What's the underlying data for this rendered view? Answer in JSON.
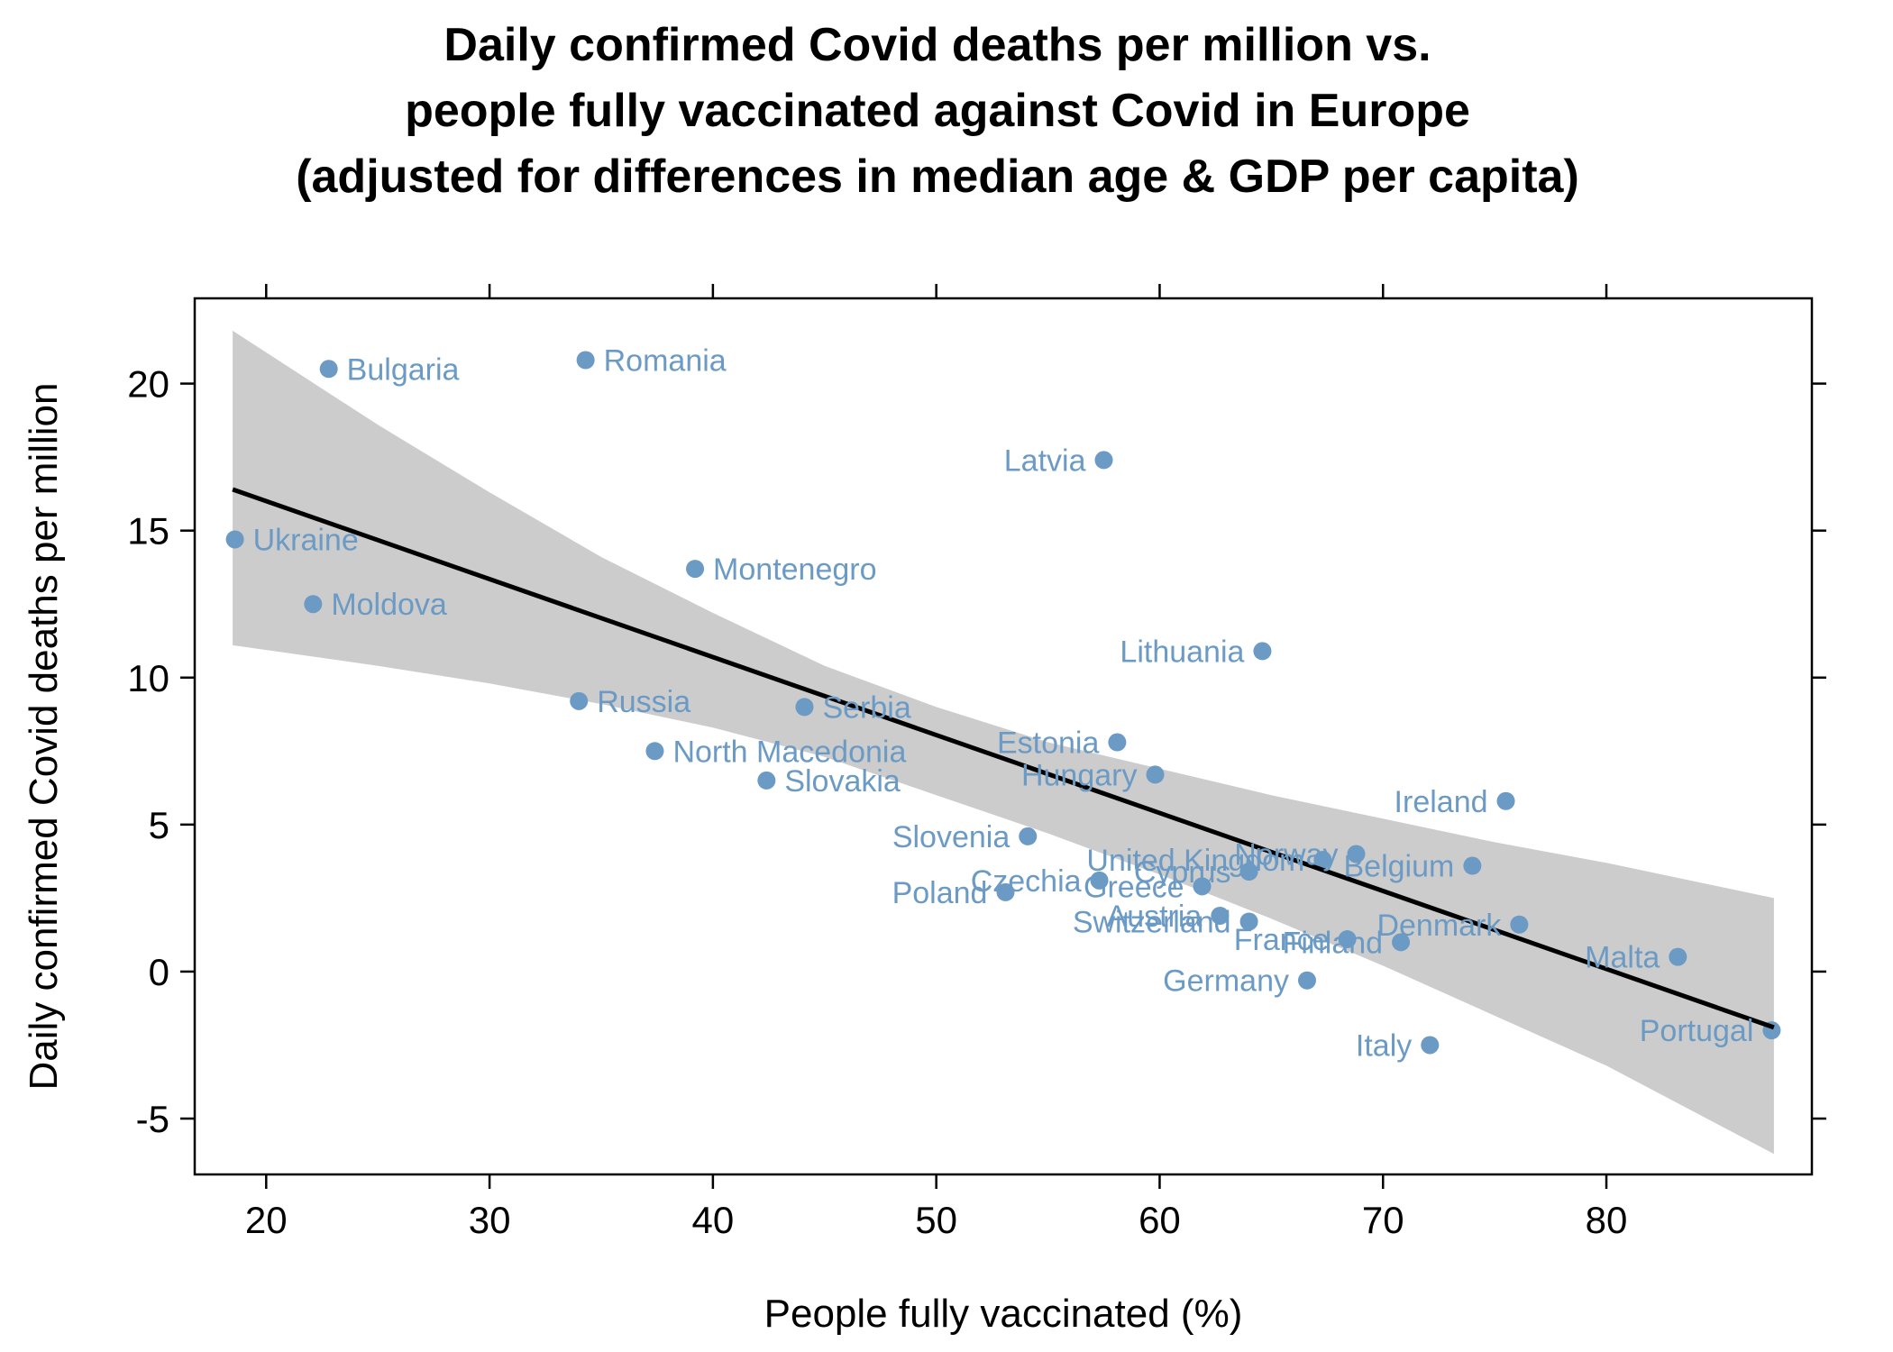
{
  "chart_data": {
    "type": "scatter",
    "title_lines": [
      "Daily confirmed Covid deaths per million vs.",
      "people fully vaccinated against Covid in Europe",
      "(adjusted for differences in median age & GDP per capita)"
    ],
    "xlabel": "People fully vaccinated (%)",
    "ylabel": "Daily confirmed Covid deaths per million",
    "xlim": [
      16.8,
      89.2
    ],
    "ylim": [
      -6.9,
      22.9
    ],
    "xticks": [
      "20",
      "30",
      "40",
      "50",
      "60",
      "70",
      "80"
    ],
    "yticks": [
      "-5",
      "0",
      "5",
      "10",
      "15",
      "20"
    ],
    "grid": false,
    "point_color": "#6b9ac4",
    "band_color": "#cccccc",
    "line_color": "#000000",
    "fit_line": {
      "x": [
        18.5,
        87.5
      ],
      "y": [
        16.4,
        -1.9
      ]
    },
    "confidence_band": {
      "x": [
        18.5,
        25,
        30,
        35,
        40,
        45,
        50,
        55,
        60,
        65,
        70,
        75,
        80,
        87.5
      ],
      "upper": [
        21.8,
        18.6,
        16.3,
        14.1,
        12.2,
        10.4,
        9.0,
        7.8,
        6.9,
        6.0,
        5.2,
        4.4,
        3.7,
        2.5
      ],
      "lower": [
        11.1,
        10.4,
        9.8,
        9.1,
        8.3,
        7.3,
        6.0,
        4.7,
        3.3,
        1.8,
        0.2,
        -1.5,
        -3.2,
        -6.2
      ]
    },
    "points": [
      {
        "name": "Bulgaria",
        "x": 22.8,
        "y": 20.5,
        "side": "right"
      },
      {
        "name": "Romania",
        "x": 34.3,
        "y": 20.8,
        "side": "right"
      },
      {
        "name": "Latvia",
        "x": 57.5,
        "y": 17.4,
        "side": "left"
      },
      {
        "name": "Ukraine",
        "x": 18.6,
        "y": 14.7,
        "side": "right"
      },
      {
        "name": "Montenegro",
        "x": 39.2,
        "y": 13.7,
        "side": "right"
      },
      {
        "name": "Moldova",
        "x": 22.1,
        "y": 12.5,
        "side": "right"
      },
      {
        "name": "Lithuania",
        "x": 64.6,
        "y": 10.9,
        "side": "left"
      },
      {
        "name": "Russia",
        "x": 34.0,
        "y": 9.2,
        "side": "right"
      },
      {
        "name": "Serbia",
        "x": 44.1,
        "y": 9.0,
        "side": "right"
      },
      {
        "name": "North Macedonia",
        "x": 37.4,
        "y": 7.5,
        "side": "right"
      },
      {
        "name": "Estonia",
        "x": 58.1,
        "y": 7.8,
        "side": "left"
      },
      {
        "name": "Hungary",
        "x": 59.8,
        "y": 6.7,
        "side": "left"
      },
      {
        "name": "Slovakia",
        "x": 42.4,
        "y": 6.5,
        "side": "right"
      },
      {
        "name": "Ireland",
        "x": 75.5,
        "y": 5.8,
        "side": "left"
      },
      {
        "name": "Slovenia",
        "x": 54.1,
        "y": 4.6,
        "side": "left"
      },
      {
        "name": "Belgium",
        "x": 74.0,
        "y": 3.6,
        "side": "left"
      },
      {
        "name": "Norway",
        "x": 68.8,
        "y": 4.0,
        "side": "left"
      },
      {
        "name": "United Kingdom",
        "x": 67.3,
        "y": 3.8,
        "side": "left"
      },
      {
        "name": "Cyprus",
        "x": 64.0,
        "y": 3.4,
        "side": "left"
      },
      {
        "name": "Czechia",
        "x": 57.3,
        "y": 3.1,
        "side": "left"
      },
      {
        "name": "Greece",
        "x": 61.9,
        "y": 2.9,
        "side": "left"
      },
      {
        "name": "Poland",
        "x": 53.1,
        "y": 2.7,
        "side": "left"
      },
      {
        "name": "Austria",
        "x": 62.7,
        "y": 1.9,
        "side": "left"
      },
      {
        "name": "Switzerland",
        "x": 64.0,
        "y": 1.7,
        "side": "left"
      },
      {
        "name": "Denmark",
        "x": 76.1,
        "y": 1.6,
        "side": "left"
      },
      {
        "name": "France",
        "x": 68.4,
        "y": 1.1,
        "side": "left"
      },
      {
        "name": "Finland",
        "x": 70.8,
        "y": 1.0,
        "side": "left"
      },
      {
        "name": "Malta",
        "x": 83.2,
        "y": 0.5,
        "side": "left"
      },
      {
        "name": "Germany",
        "x": 66.6,
        "y": -0.3,
        "side": "left"
      },
      {
        "name": "Portugal",
        "x": 87.4,
        "y": -2.0,
        "side": "left"
      },
      {
        "name": "Italy",
        "x": 72.1,
        "y": -2.5,
        "side": "left"
      }
    ]
  }
}
